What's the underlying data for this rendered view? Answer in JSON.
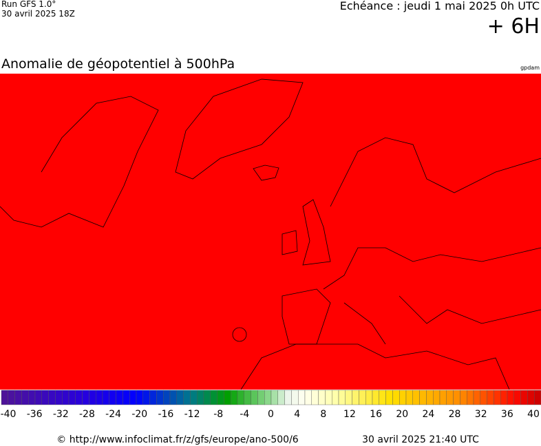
{
  "header": {
    "run": "Run GFS 1.0°",
    "run_date": "30 avril 2025 18Z",
    "echeance": "Echéance : jeudi 1 mai 2025 0h UTC",
    "lead": "+ 6H"
  },
  "map": {
    "title": "Anomalie de géopotentiel à 500hPa",
    "unit": "gpdam"
  },
  "colorbar": {
    "ticks": [
      -40,
      -36,
      -32,
      -28,
      -24,
      -20,
      -16,
      -12,
      -8,
      -4,
      0,
      4,
      8,
      12,
      16,
      20,
      24,
      28,
      32,
      36,
      40
    ]
  },
  "footer": {
    "source": "© http://www.infoclimat.fr/z/gfs/europe/ano-500/6",
    "timestamp": "30 avril 2025 21:40 UTC"
  }
}
